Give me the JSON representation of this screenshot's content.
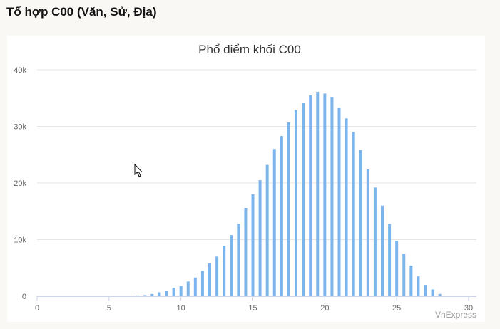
{
  "page_title": "Tổ hợp C00 (Văn, Sử, Địa)",
  "chart_data": {
    "type": "bar",
    "title": "Phổ điểm khối C00",
    "credits": "VnExpress",
    "color": "#7cb5ec",
    "grid": true,
    "x": [
      7,
      7.5,
      8,
      8.5,
      9,
      9.5,
      10,
      10.5,
      11,
      11.5,
      12,
      12.5,
      13,
      13.5,
      14,
      14.5,
      15,
      15.5,
      16,
      16.5,
      17,
      17.5,
      18,
      18.5,
      19,
      19.5,
      20,
      20.5,
      21,
      21.5,
      22,
      22.5,
      23,
      23.5,
      24,
      24.5,
      25,
      25.5,
      26,
      26.5,
      27,
      27.5,
      28
    ],
    "values": [
      100,
      200,
      400,
      700,
      1000,
      1500,
      1800,
      2600,
      3300,
      4500,
      5800,
      7000,
      8900,
      10800,
      12800,
      15600,
      18000,
      20500,
      23200,
      26000,
      28300,
      30700,
      32900,
      34200,
      35500,
      36100,
      35800,
      35200,
      33300,
      31400,
      29000,
      25800,
      22400,
      19200,
      16000,
      12800,
      9800,
      7500,
      5400,
      3500,
      2000,
      1200,
      400
    ],
    "xlim": [
      0,
      30
    ],
    "xticks": [
      0,
      5,
      10,
      15,
      20,
      25,
      30
    ],
    "ylim": [
      0,
      40000
    ],
    "yticks": [
      0,
      {
        "value": 10000,
        "label": "10k"
      },
      {
        "value": 20000,
        "label": "20k"
      },
      {
        "value": 30000,
        "label": "30k"
      },
      {
        "value": 40000,
        "label": "40k"
      }
    ]
  }
}
